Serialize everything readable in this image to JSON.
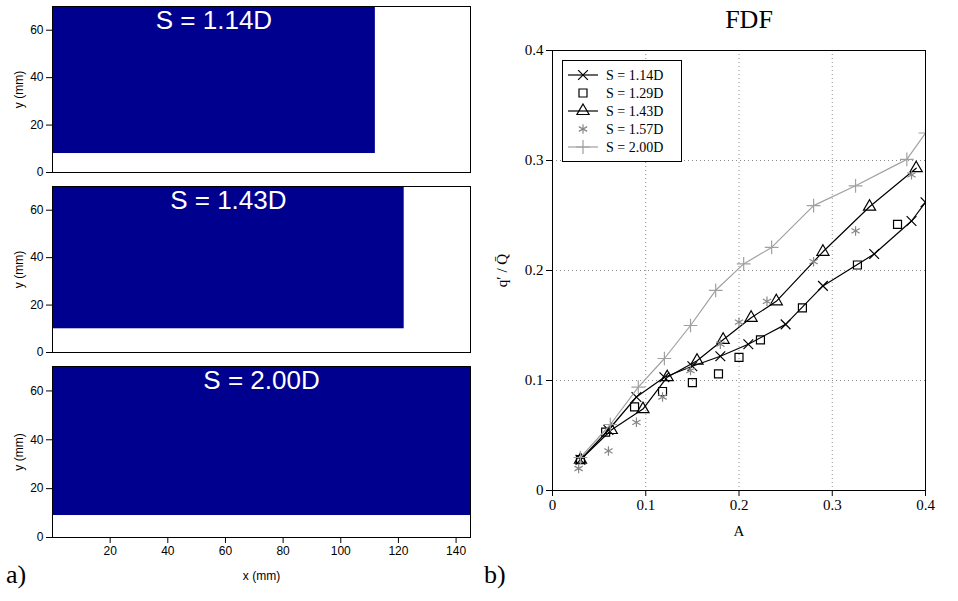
{
  "chart_data": [
    {
      "type": "image",
      "title": "S = 1.14D",
      "color": "#00008f",
      "image_x": [
        0,
        112
      ],
      "image_y": [
        8,
        70
      ],
      "xlim": [
        0,
        145
      ],
      "ylim": [
        0,
        70
      ],
      "yticks": [
        0,
        20,
        40,
        60
      ],
      "ylabel": "y (mm)",
      "tick_labels": "y"
    },
    {
      "type": "image",
      "title": "S = 1.43D",
      "color": "#00008f",
      "image_x": [
        0,
        122
      ],
      "image_y": [
        10,
        70
      ],
      "xlim": [
        0,
        145
      ],
      "ylim": [
        0,
        70
      ],
      "yticks": [
        0,
        20,
        40,
        60
      ],
      "ylabel": "y (mm)",
      "tick_labels": "y"
    },
    {
      "type": "image",
      "title": "S = 2.00D",
      "color": "#00008f",
      "panel": "a)",
      "image_x": [
        0,
        145
      ],
      "image_y": [
        9,
        70
      ],
      "xlim": [
        0,
        145
      ],
      "ylim": [
        0,
        70
      ],
      "xticks": [
        20,
        40,
        60,
        80,
        100,
        120,
        140
      ],
      "yticks": [
        0,
        20,
        40,
        60
      ],
      "xlabel": "x (mm)",
      "ylabel": "y (mm)"
    },
    {
      "type": "line",
      "title": "FDF",
      "panel": "b)",
      "xlabel": "A",
      "ylabel": "q′ / Q̄",
      "xlim": [
        0,
        0.4
      ],
      "ylim": [
        0,
        0.4
      ],
      "xticks": [
        0,
        0.1,
        0.2,
        0.3,
        0.4
      ],
      "yticks": [
        0,
        0.1,
        0.2,
        0.3,
        0.4
      ],
      "grid": true,
      "legend": "top-left",
      "series": [
        {
          "name": "S = 1.14D",
          "color": "#000000",
          "marker": "cross",
          "line_style": "solid",
          "x": [
            0.03,
            0.06,
            0.09,
            0.12,
            0.15,
            0.18,
            0.21,
            0.25,
            0.29,
            0.345,
            0.385,
            0.4
          ],
          "values": [
            0.028,
            0.055,
            0.085,
            0.103,
            0.113,
            0.122,
            0.133,
            0.151,
            0.186,
            0.215,
            0.245,
            0.262
          ]
        },
        {
          "name": "S = 1.29D",
          "color": "#000000",
          "marker": "square",
          "line_style": "none",
          "x": [
            0.03,
            0.057,
            0.088,
            0.118,
            0.15,
            0.178,
            0.2,
            0.223,
            0.268,
            0.327,
            0.37
          ],
          "values": [
            0.028,
            0.053,
            0.076,
            0.09,
            0.098,
            0.106,
            0.121,
            0.137,
            0.166,
            0.205,
            0.242
          ]
        },
        {
          "name": "S = 1.43D",
          "color": "#000000",
          "marker": "triangle",
          "line_style": "solid",
          "x": [
            0.03,
            0.063,
            0.097,
            0.123,
            0.155,
            0.183,
            0.213,
            0.24,
            0.29,
            0.34,
            0.39
          ],
          "values": [
            0.028,
            0.055,
            0.074,
            0.103,
            0.118,
            0.137,
            0.157,
            0.172,
            0.217,
            0.258,
            0.293
          ]
        },
        {
          "name": "S = 1.57D",
          "color": "#888888",
          "marker": "asterisk",
          "line_style": "none",
          "x": [
            0.028,
            0.06,
            0.09,
            0.118,
            0.148,
            0.18,
            0.2,
            0.23,
            0.28,
            0.325,
            0.385
          ],
          "values": [
            0.02,
            0.036,
            0.062,
            0.085,
            0.109,
            0.133,
            0.153,
            0.172,
            0.208,
            0.236,
            0.287
          ]
        },
        {
          "name": "S = 2.00D",
          "color": "#a0a0a0",
          "marker": "plus",
          "line_style": "solid",
          "x": [
            0.03,
            0.062,
            0.092,
            0.12,
            0.148,
            0.175,
            0.205,
            0.235,
            0.28,
            0.325,
            0.38,
            0.4
          ],
          "values": [
            0.03,
            0.06,
            0.094,
            0.12,
            0.15,
            0.182,
            0.206,
            0.221,
            0.259,
            0.277,
            0.301,
            0.325
          ]
        }
      ]
    }
  ]
}
